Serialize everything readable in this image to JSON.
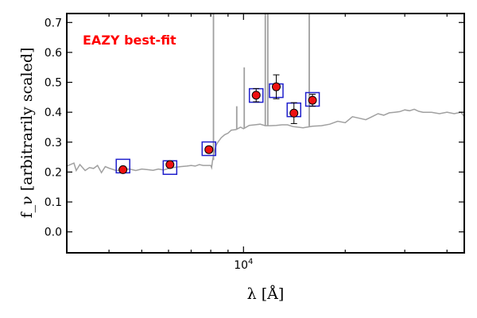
{
  "chart_data": {
    "type": "scatter",
    "title": "",
    "xlabel": "λ [Å]",
    "ylabel": "f_ν [arbitrarily scaled]",
    "xscale": "log",
    "xlim": [
      3000,
      45000
    ],
    "ylim": [
      -0.07,
      0.73
    ],
    "y_ticks": [
      0.0,
      0.1,
      0.2,
      0.3,
      0.4,
      0.5,
      0.6,
      0.7
    ],
    "y_tick_labels": [
      "0.0",
      "0.1",
      "0.2",
      "0.3",
      "0.4",
      "0.5",
      "0.6",
      "0.7"
    ],
    "x_major_tick_labels": [
      {
        "value": 10000,
        "base": "10",
        "exp": "4"
      }
    ],
    "x_minor_ticks": [
      4000,
      5000,
      6000,
      7000,
      8000,
      9000,
      20000,
      30000,
      40000
    ],
    "grid": false,
    "annotation": {
      "text": "EAZY best-fit",
      "color": "#ff0000"
    },
    "colors": {
      "observed_fill": "#ee1111",
      "model_box": "#1f1fcc",
      "sed_line": "#a0a0a0"
    },
    "series": [
      {
        "role": "observed",
        "x": [
          4400,
          6060,
          7900,
          10900,
          12500,
          14100,
          16000
        ],
        "y": [
          0.208,
          0.225,
          0.275,
          0.457,
          0.485,
          0.397,
          0.44
        ],
        "yerr": [
          0.006,
          0.008,
          0.01,
          0.022,
          0.04,
          0.035,
          0.02
        ]
      },
      {
        "role": "model",
        "x": [
          4400,
          6060,
          7900,
          10900,
          12500,
          14100,
          16000
        ],
        "y": [
          0.22,
          0.215,
          0.278,
          0.456,
          0.472,
          0.408,
          0.443
        ]
      },
      {
        "role": "best-fit SED",
        "x": [
          3000,
          3150,
          3200,
          3280,
          3400,
          3500,
          3600,
          3700,
          3800,
          3900,
          4000,
          4200,
          4400,
          4600,
          4800,
          5000,
          5200,
          5400,
          5600,
          5800,
          6000,
          6200,
          6500,
          6800,
          7000,
          7200,
          7400,
          7600,
          7800,
          8000,
          8050,
          8100,
          8200,
          8300,
          8400,
          8600,
          8800,
          9000,
          9200,
          9500,
          9800,
          10000,
          10400,
          10800,
          11200,
          11600,
          12000,
          12500,
          13000,
          13500,
          14000,
          15000,
          16000,
          17000,
          18000,
          19000,
          20000,
          21000,
          22000,
          23000,
          24000,
          25000,
          26000,
          27000,
          28000,
          29000,
          30000,
          31000,
          32000,
          33000,
          34000,
          36000,
          38000,
          40000,
          42000,
          44000,
          45000
        ],
        "y": [
          0.22,
          0.23,
          0.205,
          0.225,
          0.205,
          0.215,
          0.212,
          0.222,
          0.198,
          0.218,
          0.213,
          0.205,
          0.208,
          0.21,
          0.205,
          0.21,
          0.208,
          0.206,
          0.21,
          0.207,
          0.212,
          0.215,
          0.218,
          0.22,
          0.222,
          0.22,
          0.225,
          0.222,
          0.222,
          0.222,
          0.215,
          0.24,
          0.268,
          0.29,
          0.3,
          0.315,
          0.325,
          0.33,
          0.34,
          0.342,
          0.35,
          0.345,
          0.356,
          0.358,
          0.36,
          0.355,
          0.355,
          0.356,
          0.358,
          0.358,
          0.352,
          0.348,
          0.353,
          0.355,
          0.36,
          0.37,
          0.365,
          0.385,
          0.38,
          0.375,
          0.385,
          0.395,
          0.39,
          0.398,
          0.4,
          0.402,
          0.408,
          0.405,
          0.41,
          0.403,
          0.4,
          0.4,
          0.395,
          0.4,
          0.395,
          0.4,
          0.385
        ]
      },
      {
        "role": "emission lines",
        "x": [
          8150,
          9550,
          10050,
          11600,
          11800,
          15650
        ],
        "y": [
          0.73,
          0.42,
          0.55,
          0.73,
          0.73,
          0.73
        ]
      }
    ]
  }
}
